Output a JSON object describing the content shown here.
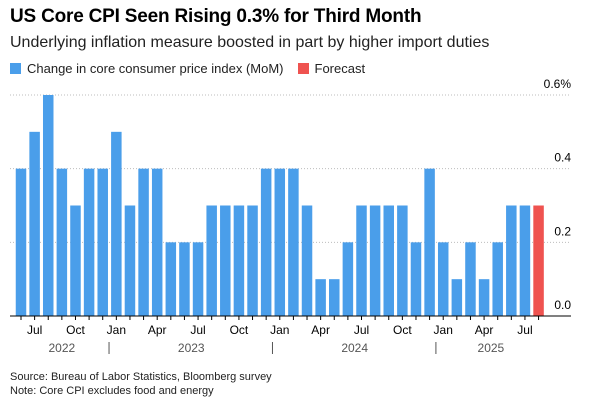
{
  "title": "US Core CPI Seen Rising 0.3% for Third Month",
  "subtitle": "Underlying inflation measure boosted in part by higher import duties",
  "colors": {
    "actual": "#4A9EEA",
    "forecast": "#EF5350",
    "grid": "#bdbdbd",
    "axis": "#000000",
    "text": "#000000"
  },
  "chart_data": {
    "type": "bar",
    "title": "US Core CPI Seen Rising 0.3% for Third Month",
    "subtitle": "Underlying inflation measure boosted in part by higher import duties",
    "xlabel": "",
    "ylabel": "",
    "ylim": [
      0,
      0.6
    ],
    "y_ticks": [
      {
        "value": 0.6,
        "label": "0.6%"
      },
      {
        "value": 0.4,
        "label": "0.4"
      },
      {
        "value": 0.2,
        "label": "0.2"
      },
      {
        "value": 0.0,
        "label": "0.0"
      }
    ],
    "grid": true,
    "legend": "top-left",
    "categories": [
      "2022-06",
      "2022-07",
      "2022-08",
      "2022-09",
      "2022-10",
      "2022-11",
      "2022-12",
      "2023-01",
      "2023-02",
      "2023-03",
      "2023-04",
      "2023-05",
      "2023-06",
      "2023-07",
      "2023-08",
      "2023-09",
      "2023-10",
      "2023-11",
      "2023-12",
      "2024-01",
      "2024-02",
      "2024-03",
      "2024-04",
      "2024-05",
      "2024-06",
      "2024-07",
      "2024-08",
      "2024-09",
      "2024-10",
      "2024-11",
      "2024-12",
      "2025-01",
      "2025-02",
      "2025-03",
      "2025-04",
      "2025-05",
      "2025-06",
      "2025-07",
      "2025-08"
    ],
    "series": [
      {
        "name": "Change in core consumer price index (MoM)",
        "values": [
          0.4,
          0.5,
          0.6,
          0.4,
          0.3,
          0.4,
          0.4,
          0.5,
          0.3,
          0.4,
          0.4,
          0.2,
          0.2,
          0.2,
          0.3,
          0.3,
          0.3,
          0.3,
          0.4,
          0.4,
          0.4,
          0.3,
          0.1,
          0.1,
          0.2,
          0.3,
          0.3,
          0.3,
          0.3,
          0.2,
          0.4,
          0.2,
          0.1,
          0.2,
          0.1,
          0.2,
          0.3,
          0.3,
          null
        ]
      },
      {
        "name": "Forecast",
        "values": [
          null,
          null,
          null,
          null,
          null,
          null,
          null,
          null,
          null,
          null,
          null,
          null,
          null,
          null,
          null,
          null,
          null,
          null,
          null,
          null,
          null,
          null,
          null,
          null,
          null,
          null,
          null,
          null,
          null,
          null,
          null,
          null,
          null,
          null,
          null,
          null,
          null,
          null,
          0.3
        ]
      }
    ],
    "x_ticks": [
      {
        "index": 1,
        "label": "Jul"
      },
      {
        "index": 4,
        "label": "Oct"
      },
      {
        "index": 7,
        "label": "Jan"
      },
      {
        "index": 10,
        "label": "Apr"
      },
      {
        "index": 13,
        "label": "Jul"
      },
      {
        "index": 16,
        "label": "Oct"
      },
      {
        "index": 19,
        "label": "Jan"
      },
      {
        "index": 22,
        "label": "Apr"
      },
      {
        "index": 25,
        "label": "Jul"
      },
      {
        "index": 28,
        "label": "Oct"
      },
      {
        "index": 31,
        "label": "Jan"
      },
      {
        "index": 34,
        "label": "Apr"
      },
      {
        "index": 37,
        "label": "Jul"
      }
    ],
    "year_labels": [
      {
        "label": "2022",
        "start": 0,
        "end": 6
      },
      {
        "label": "2023",
        "start": 7,
        "end": 18
      },
      {
        "label": "2024",
        "start": 19,
        "end": 30
      },
      {
        "label": "2025",
        "start": 31,
        "end": 38
      }
    ]
  },
  "footer": {
    "source": "Source: Bureau of Labor Statistics, Bloomberg survey",
    "note": "Note: Core CPI excludes food and energy"
  }
}
